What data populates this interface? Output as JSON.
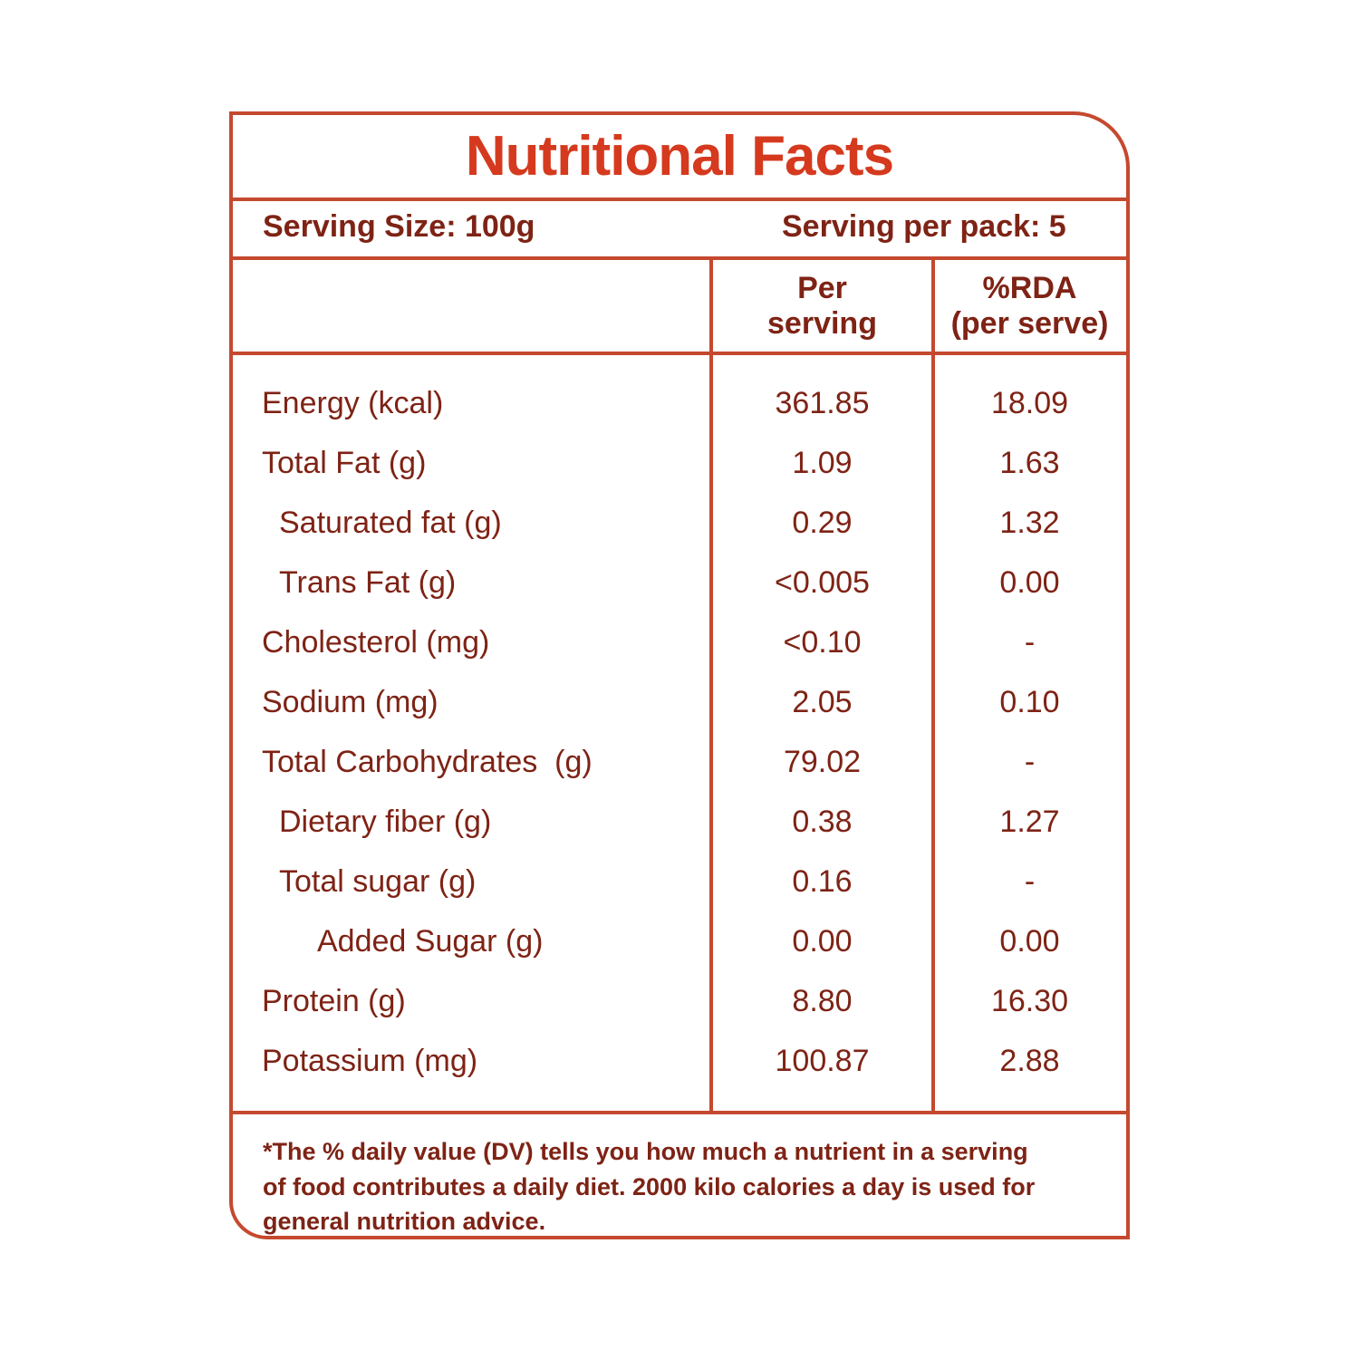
{
  "label": {
    "title": "Nutritional Facts",
    "serving": {
      "size_label": "Serving Size: 100g",
      "per_pack_label": "Serving per pack: 5"
    },
    "columns": {
      "per_serving_line1": "Per",
      "per_serving_line2": "serving",
      "rda_line1": "%RDA",
      "rda_line2": "(per serve)"
    },
    "rows": [
      {
        "name": "Energy (kcal)",
        "per_serving": "361.85",
        "rda": "18.09",
        "indent": 0
      },
      {
        "name": "Total Fat (g)",
        "per_serving": "1.09",
        "rda": "1.63",
        "indent": 0
      },
      {
        "name": "Saturated fat (g)",
        "per_serving": "0.29",
        "rda": "1.32",
        "indent": 1
      },
      {
        "name": "Trans Fat (g)",
        "per_serving": "<0.005",
        "rda": "0.00",
        "indent": 1
      },
      {
        "name": "Cholesterol (mg)",
        "per_serving": "<0.10",
        "rda": "-",
        "indent": 0
      },
      {
        "name": "Sodium (mg)",
        "per_serving": "2.05",
        "rda": "0.10",
        "indent": 0
      },
      {
        "name": "Total Carbohydrates  (g)",
        "per_serving": "79.02",
        "rda": "-",
        "indent": 0
      },
      {
        "name": "Dietary fiber (g)",
        "per_serving": "0.38",
        "rda": "1.27",
        "indent": 1
      },
      {
        "name": "Total sugar (g)",
        "per_serving": "0.16",
        "rda": "-",
        "indent": 1
      },
      {
        "name": "Added Sugar (g)",
        "per_serving": "0.00",
        "rda": "0.00",
        "indent": 2
      },
      {
        "name": "Protein (g)",
        "per_serving": "8.80",
        "rda": "16.30",
        "indent": 0
      },
      {
        "name": "Potassium (mg)",
        "per_serving": "100.87",
        "rda": "2.88",
        "indent": 0
      }
    ],
    "footnote_lines": [
      "*The % daily value (DV) tells you how much a nutrient in a serving",
      "of food contributes a daily diet. 2000 kilo calories a day is used for",
      "general nutrition advice."
    ],
    "colors": {
      "accent_border": "#c5492f",
      "title_red": "#d53a1e",
      "text_maroon": "#7e2315"
    }
  }
}
